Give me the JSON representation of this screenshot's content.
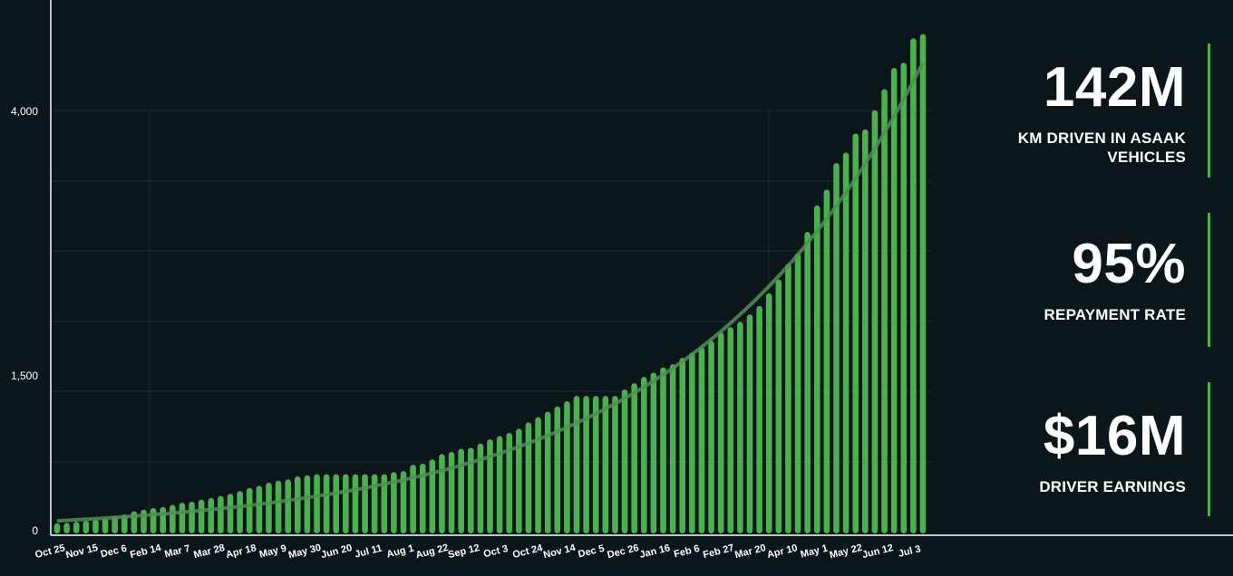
{
  "stats": [
    {
      "value": "142M",
      "label": "KM DRIVEN IN ASAAK VEHICLES"
    },
    {
      "value": "95%",
      "label": "REPAYMENT RATE"
    },
    {
      "value": "$16M",
      "label": "DRIVER EARNINGS"
    }
  ],
  "colors": {
    "background": "#0b161b",
    "bar": "#4caf50",
    "trend": "#4f8f52",
    "axis": "#ffffff",
    "grid": "#1e2d33",
    "text": "#ffffff"
  },
  "chart_data": {
    "type": "bar",
    "title": "",
    "xlabel": "",
    "ylabel": "",
    "ylim": [
      0,
      4700
    ],
    "grid": true,
    "y_ticks": [
      {
        "value": 0,
        "label": "0"
      },
      {
        "value": 1500,
        "label": "1,500"
      },
      {
        "value": 4000,
        "label": "4,000"
      }
    ],
    "x_tick_labels": [
      "Oct 25",
      "Nov 15",
      "Dec 6",
      "Feb 14",
      "Mar 7",
      "Mar 28",
      "Apr 18",
      "May 9",
      "May 30",
      "Jun 20",
      "Jul 11",
      "Aug 1",
      "Aug 22",
      "Sep 12",
      "Oct 3",
      "Oct 24",
      "Nov 14",
      "Dec 5",
      "Dec 26",
      "Jan 16",
      "Feb 6",
      "Feb 27",
      "Mar 20",
      "Apr 10",
      "May 1",
      "May 22",
      "Jun 12",
      "Jul 3"
    ],
    "values": [
      95,
      100,
      110,
      120,
      130,
      145,
      165,
      180,
      210,
      225,
      240,
      250,
      270,
      290,
      300,
      320,
      335,
      355,
      375,
      400,
      430,
      450,
      480,
      500,
      510,
      540,
      550,
      560,
      560,
      560,
      560,
      560,
      560,
      560,
      560,
      580,
      590,
      650,
      660,
      700,
      750,
      770,
      800,
      810,
      850,
      890,
      920,
      950,
      990,
      1050,
      1100,
      1150,
      1200,
      1250,
      1300,
      1300,
      1300,
      1300,
      1300,
      1360,
      1420,
      1480,
      1520,
      1570,
      1600,
      1660,
      1710,
      1760,
      1820,
      1900,
      1950,
      2000,
      2070,
      2150,
      2270,
      2400,
      2550,
      2650,
      2850,
      3100,
      3250,
      3500,
      3600,
      3780,
      3820,
      4000,
      4200,
      4400,
      4450,
      4680,
      4720
    ]
  }
}
